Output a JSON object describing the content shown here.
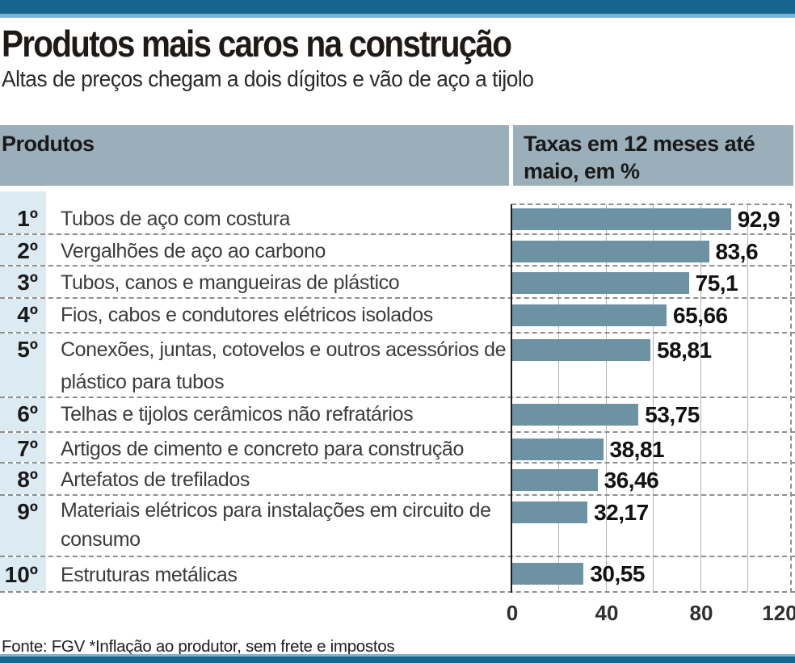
{
  "page": {
    "title": "Produtos mais caros na construção",
    "subtitle": "Altas de preços chegam a dois dígitos e vão de aço a tijolo"
  },
  "table_header": {
    "products_col": "Produtos",
    "rates_col": "Taxas em 12 meses até maio, em %"
  },
  "chart_data": {
    "type": "bar",
    "orientation": "horizontal",
    "title": "Taxas em 12 meses até maio, em %",
    "ranks": [
      "1º",
      "2º",
      "3º",
      "4º",
      "5º",
      "6º",
      "7º",
      "8º",
      "9º",
      "10º"
    ],
    "categories": [
      "Tubos de aço com costura",
      "Vergalhões de aço ao carbono",
      "Tubos, canos e mangueiras de plástico",
      "Fios, cabos e condutores elétricos isolados",
      "Conexões, juntas, cotovelos e outros acessórios de plástico para tubos",
      "Telhas e tijolos cerâmicos não refratários",
      "Artigos de cimento e concreto para construção",
      "Artefatos de trefilados",
      "Materiais elétricos para instalações em circuito de consumo",
      "Estruturas metálicas"
    ],
    "values": [
      92.9,
      83.6,
      75.1,
      65.66,
      58.81,
      53.75,
      38.81,
      36.46,
      32.17,
      30.55
    ],
    "value_labels": [
      "92,9",
      "83,6",
      "75,1",
      "65,66",
      "58,81",
      "53,75",
      "38,81",
      "36,46",
      "32,17",
      "30,55"
    ],
    "xlim": [
      0,
      120
    ],
    "xticks": [
      0,
      40,
      80,
      120
    ],
    "xtick_labels": [
      "0",
      "40",
      "80",
      "120"
    ],
    "gridline_step": 20,
    "grid": true,
    "legend_position": "none",
    "bar_color": "#6d92a3"
  },
  "footer": {
    "source": "Fonte: FGV *Inflação ao produtor, sem frete e impostos"
  },
  "colors": {
    "brand_bar": "#15658f",
    "brand_bar_light": "#7cb1cf",
    "header_band": "#9aafb9",
    "rank_column": "#dcebf2",
    "bar": "#6d92a3"
  }
}
